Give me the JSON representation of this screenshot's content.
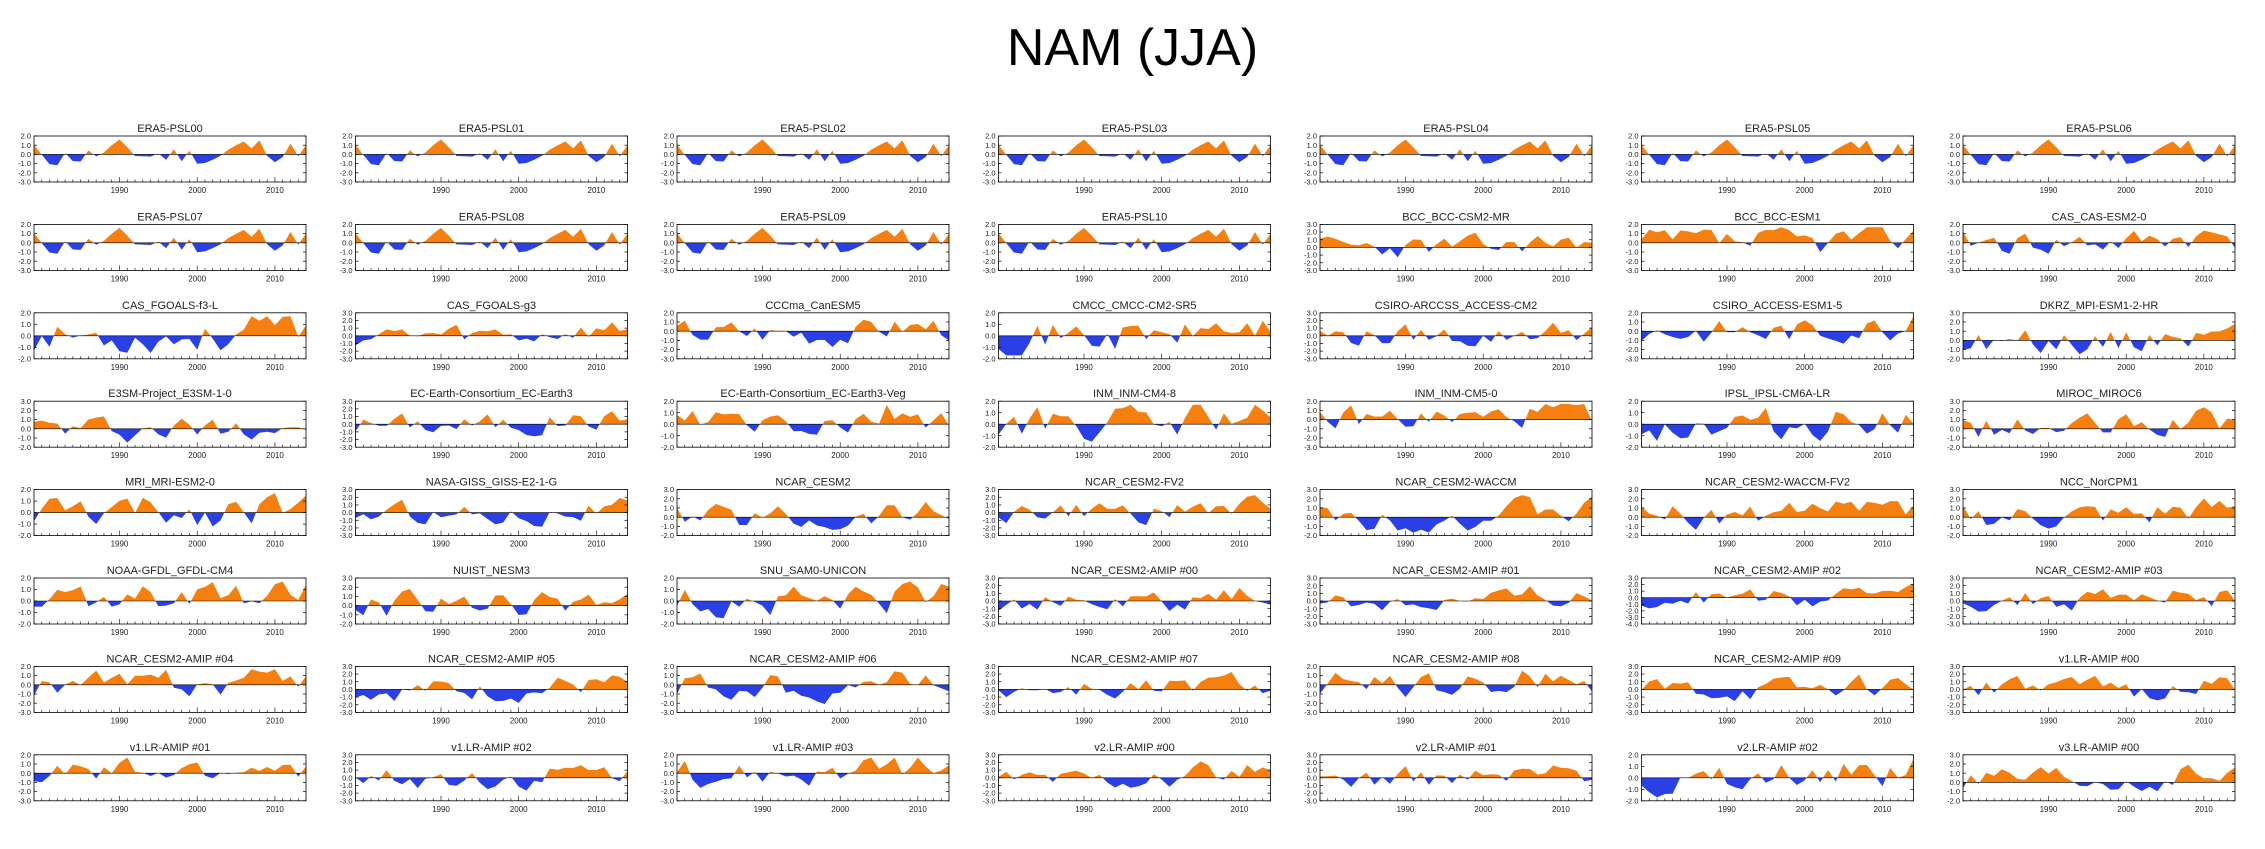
{
  "title": "NAM (JJA)",
  "colors": {
    "positive": "#f57f0f",
    "negative": "#2a3fe5",
    "axis": "#000000"
  },
  "chart_data": {
    "type": "area",
    "layout": "grid of small-multiple panels, 7 columns x 8 rows",
    "years": [
      1979,
      2014
    ],
    "x_ticks": [
      "1990",
      "2000",
      "2010"
    ],
    "panels": [
      {
        "title": "ERA5-PSL00",
        "ylim": [
          -3,
          2
        ],
        "y_ticks": [
          "2.0",
          "1.0",
          "0.0",
          "-1.0",
          "-2.0",
          "-3.0"
        ],
        "seed": 11
      },
      {
        "title": "ERA5-PSL01",
        "ylim": [
          -3,
          2
        ],
        "y_ticks": [
          "2.0",
          "1.0",
          "0.0",
          "-1.0",
          "-2.0",
          "-3.0"
        ],
        "seed": 11
      },
      {
        "title": "ERA5-PSL02",
        "ylim": [
          -3,
          2
        ],
        "y_ticks": [
          "2.0",
          "1.0",
          "0.0",
          "-1.0",
          "-2.0",
          "-3.0"
        ],
        "seed": 11
      },
      {
        "title": "ERA5-PSL03",
        "ylim": [
          -3,
          2
        ],
        "y_ticks": [
          "2.0",
          "1.0",
          "0.0",
          "-1.0",
          "-2.0",
          "-3.0"
        ],
        "seed": 11
      },
      {
        "title": "ERA5-PSL04",
        "ylim": [
          -3,
          2
        ],
        "y_ticks": [
          "2.0",
          "1.0",
          "0.0",
          "-1.0",
          "-2.0",
          "-3.0"
        ],
        "seed": 11
      },
      {
        "title": "ERA5-PSL05",
        "ylim": [
          -3,
          2
        ],
        "y_ticks": [
          "2.0",
          "1.0",
          "0.0",
          "-1.0",
          "-2.0",
          "-3.0"
        ],
        "seed": 11
      },
      {
        "title": "ERA5-PSL06",
        "ylim": [
          -3,
          2
        ],
        "y_ticks": [
          "2.0",
          "1.0",
          "0.0",
          "-1.0",
          "-2.0",
          "-3.0"
        ],
        "seed": 11
      },
      {
        "title": "ERA5-PSL07",
        "ylim": [
          -3,
          2
        ],
        "y_ticks": [
          "2.0",
          "1.0",
          "0.0",
          "-1.0",
          "-2.0",
          "-3.0"
        ],
        "seed": 11
      },
      {
        "title": "ERA5-PSL08",
        "ylim": [
          -3,
          2
        ],
        "y_ticks": [
          "2.0",
          "1.0",
          "0.0",
          "-1.0",
          "-2.0",
          "-3.0"
        ],
        "seed": 11
      },
      {
        "title": "ERA5-PSL09",
        "ylim": [
          -3,
          2
        ],
        "y_ticks": [
          "2.0",
          "1.0",
          "0.0",
          "-1.0",
          "-2.0",
          "-3.0"
        ],
        "seed": 11
      },
      {
        "title": "ERA5-PSL10",
        "ylim": [
          -3,
          2
        ],
        "y_ticks": [
          "2.0",
          "1.0",
          "0.0",
          "-1.0",
          "-2.0",
          "-3.0"
        ],
        "seed": 11
      },
      {
        "title": "BCC_BCC-CSM2-MR",
        "ylim": [
          -3,
          3
        ],
        "y_ticks": [
          "3.0",
          "2.0",
          "1.0",
          "0.0",
          "-1.0",
          "-2.0",
          "-3.0"
        ],
        "seed": 23
      },
      {
        "title": "BCC_BCC-ESM1",
        "ylim": [
          -3,
          2
        ],
        "y_ticks": [
          "2.0",
          "1.0",
          "0.0",
          "-1.0",
          "-2.0",
          "-3.0"
        ],
        "seed": 37
      },
      {
        "title": "CAS_CAS-ESM2-0",
        "ylim": [
          -3,
          2
        ],
        "y_ticks": [
          "2.0",
          "1.0",
          "0.0",
          "-1.0",
          "-2.0",
          "-3.0"
        ],
        "seed": 41
      },
      {
        "title": "CAS_FGOALS-f3-L",
        "ylim": [
          -2,
          2
        ],
        "y_ticks": [
          "2.0",
          "1.0",
          "0.0",
          "-1.0",
          "-2.0"
        ],
        "seed": 53
      },
      {
        "title": "CAS_FGOALS-g3",
        "ylim": [
          -3,
          3
        ],
        "y_ticks": [
          "3.0",
          "2.0",
          "1.0",
          "0.0",
          "-1.0",
          "-2.0",
          "-3.0"
        ],
        "seed": 59
      },
      {
        "title": "CCCma_CanESM5",
        "ylim": [
          -3,
          2
        ],
        "y_ticks": [
          "2.0",
          "1.0",
          "0.0",
          "-1.0",
          "-2.0",
          "-3.0"
        ],
        "seed": 67
      },
      {
        "title": "CMCC_CMCC-CM2-SR5",
        "ylim": [
          -2,
          2
        ],
        "y_ticks": [
          "2.0",
          "1.0",
          "0.0",
          "-1.0",
          "-2.0"
        ],
        "seed": 71
      },
      {
        "title": "CSIRO-ARCCSS_ACCESS-CM2",
        "ylim": [
          -3,
          3
        ],
        "y_ticks": [
          "3.0",
          "2.0",
          "1.0",
          "0.0",
          "-1.0",
          "-2.0",
          "-3.0"
        ],
        "seed": 79
      },
      {
        "title": "CSIRO_ACCESS-ESM1-5",
        "ylim": [
          -3,
          2
        ],
        "y_ticks": [
          "2.0",
          "1.0",
          "0.0",
          "-1.0",
          "-2.0",
          "-3.0"
        ],
        "seed": 83
      },
      {
        "title": "DKRZ_MPI-ESM1-2-HR",
        "ylim": [
          -2,
          3
        ],
        "y_ticks": [
          "3.0",
          "2.0",
          "1.0",
          "0.0",
          "-1.0",
          "-2.0"
        ],
        "seed": 89
      },
      {
        "title": "E3SM-Project_E3SM-1-0",
        "ylim": [
          -2,
          3
        ],
        "y_ticks": [
          "3.0",
          "2.0",
          "1.0",
          "0.0",
          "-1.0",
          "-2.0"
        ],
        "seed": 97
      },
      {
        "title": "EC-Earth-Consortium_EC-Earth3",
        "ylim": [
          -3,
          3
        ],
        "y_ticks": [
          "3.0",
          "2.0",
          "1.0",
          "0.0",
          "-1.0",
          "-2.0",
          "-3.0"
        ],
        "seed": 101
      },
      {
        "title": "EC-Earth-Consortium_EC-Earth3-Veg",
        "ylim": [
          -2,
          2
        ],
        "y_ticks": [
          "2.0",
          "1.0",
          "0.0",
          "-1.0",
          "-2.0"
        ],
        "seed": 103
      },
      {
        "title": "INM_INM-CM4-8",
        "ylim": [
          -2,
          2
        ],
        "y_ticks": [
          "2.0",
          "1.0",
          "0.0",
          "-1.0",
          "-2.0"
        ],
        "seed": 107
      },
      {
        "title": "INM_INM-CM5-0",
        "ylim": [
          -3,
          2
        ],
        "y_ticks": [
          "2.0",
          "1.0",
          "0.0",
          "-1.0",
          "-2.0",
          "-3.0"
        ],
        "seed": 109
      },
      {
        "title": "IPSL_IPSL-CM6A-LR",
        "ylim": [
          -2,
          2
        ],
        "y_ticks": [
          "2.0",
          "1.0",
          "0.0",
          "-1.0",
          "-2.0"
        ],
        "seed": 113
      },
      {
        "title": "MIROC_MIROC6",
        "ylim": [
          -2,
          3
        ],
        "y_ticks": [
          "3.0",
          "2.0",
          "1.0",
          "0.0",
          "-1.0",
          "-2.0"
        ],
        "seed": 127
      },
      {
        "title": "MRI_MRI-ESM2-0",
        "ylim": [
          -2,
          2
        ],
        "y_ticks": [
          "2.0",
          "1.0",
          "0.0",
          "-1.0",
          "-2.0"
        ],
        "seed": 131
      },
      {
        "title": "NASA-GISS_GISS-E2-1-G",
        "ylim": [
          -3,
          3
        ],
        "y_ticks": [
          "3.0",
          "2.0",
          "1.0",
          "0.0",
          "-1.0",
          "-2.0",
          "-3.0"
        ],
        "seed": 137
      },
      {
        "title": "NCAR_CESM2",
        "ylim": [
          -2,
          3
        ],
        "y_ticks": [
          "3.0",
          "2.0",
          "1.0",
          "0.0",
          "-1.0",
          "-2.0"
        ],
        "seed": 139
      },
      {
        "title": "NCAR_CESM2-FV2",
        "ylim": [
          -3,
          3
        ],
        "y_ticks": [
          "3.0",
          "2.0",
          "1.0",
          "0.0",
          "-1.0",
          "-2.0",
          "-3.0"
        ],
        "seed": 149
      },
      {
        "title": "NCAR_CESM2-WACCM",
        "ylim": [
          -2,
          3
        ],
        "y_ticks": [
          "3.0",
          "2.0",
          "1.0",
          "0.0",
          "-1.0",
          "-2.0"
        ],
        "seed": 151
      },
      {
        "title": "NCAR_CESM2-WACCM-FV2",
        "ylim": [
          -2,
          3
        ],
        "y_ticks": [
          "3.0",
          "2.0",
          "1.0",
          "0.0",
          "-1.0",
          "-2.0"
        ],
        "seed": 157
      },
      {
        "title": "NCC_NorCPM1",
        "ylim": [
          -2,
          3
        ],
        "y_ticks": [
          "3.0",
          "2.0",
          "1.0",
          "0.0",
          "-1.0",
          "-2.0"
        ],
        "seed": 163
      },
      {
        "title": "NOAA-GFDL_GFDL-CM4",
        "ylim": [
          -2,
          2
        ],
        "y_ticks": [
          "2.0",
          "1.0",
          "0.0",
          "-1.0",
          "-2.0"
        ],
        "seed": 167
      },
      {
        "title": "NUIST_NESM3",
        "ylim": [
          -2,
          3
        ],
        "y_ticks": [
          "3.0",
          "2.0",
          "1.0",
          "0.0",
          "-1.0",
          "-2.0"
        ],
        "seed": 173
      },
      {
        "title": "SNU_SAM0-UNICON",
        "ylim": [
          -2,
          2
        ],
        "y_ticks": [
          "2.0",
          "1.0",
          "0.0",
          "-1.0",
          "-2.0"
        ],
        "seed": 179
      },
      {
        "title": "NCAR_CESM2-AMIP  #00",
        "ylim": [
          -3,
          3
        ],
        "y_ticks": [
          "3.0",
          "2.0",
          "1.0",
          "0.0",
          "-1.0",
          "-2.0",
          "-3.0"
        ],
        "seed": 181
      },
      {
        "title": "NCAR_CESM2-AMIP  #01",
        "ylim": [
          -3,
          3
        ],
        "y_ticks": [
          "3.0",
          "2.0",
          "1.0",
          "0.0",
          "-1.0",
          "-2.0",
          "-3.0"
        ],
        "seed": 191
      },
      {
        "title": "NCAR_CESM2-AMIP  #02",
        "ylim": [
          -4,
          3
        ],
        "y_ticks": [
          "3.0",
          "2.0",
          "1.0",
          "0.0",
          "-1.0",
          "-2.0",
          "-3.0",
          "-4.0"
        ],
        "seed": 193
      },
      {
        "title": "NCAR_CESM2-AMIP  #03",
        "ylim": [
          -3,
          3
        ],
        "y_ticks": [
          "3.0",
          "2.0",
          "1.0",
          "0.0",
          "-1.0",
          "-2.0",
          "-3.0"
        ],
        "seed": 197
      },
      {
        "title": "NCAR_CESM2-AMIP  #04",
        "ylim": [
          -3,
          2
        ],
        "y_ticks": [
          "2.0",
          "1.0",
          "0.0",
          "-1.0",
          "-2.0",
          "-3.0"
        ],
        "seed": 199
      },
      {
        "title": "NCAR_CESM2-AMIP  #05",
        "ylim": [
          -3,
          3
        ],
        "y_ticks": [
          "3.0",
          "2.0",
          "1.0",
          "0.0",
          "-1.0",
          "-2.0",
          "-3.0"
        ],
        "seed": 211
      },
      {
        "title": "NCAR_CESM2-AMIP  #06",
        "ylim": [
          -3,
          2
        ],
        "y_ticks": [
          "2.0",
          "1.0",
          "0.0",
          "-1.0",
          "-2.0",
          "-3.0"
        ],
        "seed": 223
      },
      {
        "title": "NCAR_CESM2-AMIP  #07",
        "ylim": [
          -3,
          3
        ],
        "y_ticks": [
          "3.0",
          "2.0",
          "1.0",
          "0.0",
          "-1.0",
          "-2.0",
          "-3.0"
        ],
        "seed": 227
      },
      {
        "title": "NCAR_CESM2-AMIP  #08",
        "ylim": [
          -3,
          2
        ],
        "y_ticks": [
          "2.0",
          "1.0",
          "0.0",
          "-1.0",
          "-2.0",
          "-3.0"
        ],
        "seed": 229
      },
      {
        "title": "NCAR_CESM2-AMIP  #09",
        "ylim": [
          -3,
          3
        ],
        "y_ticks": [
          "3.0",
          "2.0",
          "1.0",
          "0.0",
          "-1.0",
          "-2.0",
          "-3.0"
        ],
        "seed": 233
      },
      {
        "title": "v1.LR-AMIP  #00",
        "ylim": [
          -3,
          3
        ],
        "y_ticks": [
          "3.0",
          "2.0",
          "1.0",
          "0.0",
          "-1.0",
          "-2.0",
          "-3.0"
        ],
        "seed": 239
      },
      {
        "title": "v1.LR-AMIP  #01",
        "ylim": [
          -3,
          2
        ],
        "y_ticks": [
          "2.0",
          "1.0",
          "0.0",
          "-1.0",
          "-2.0",
          "-3.0"
        ],
        "seed": 241
      },
      {
        "title": "v1.LR-AMIP  #02",
        "ylim": [
          -3,
          3
        ],
        "y_ticks": [
          "3.0",
          "2.0",
          "1.0",
          "0.0",
          "-1.0",
          "-2.0",
          "-3.0"
        ],
        "seed": 251
      },
      {
        "title": "v1.LR-AMIP  #03",
        "ylim": [
          -3,
          2
        ],
        "y_ticks": [
          "2.0",
          "1.0",
          "0.0",
          "-1.0",
          "-2.0",
          "-3.0"
        ],
        "seed": 257
      },
      {
        "title": "v2.LR-AMIP  #00",
        "ylim": [
          -3,
          3
        ],
        "y_ticks": [
          "3.0",
          "2.0",
          "1.0",
          "0.0",
          "-1.0",
          "-2.0",
          "-3.0"
        ],
        "seed": 263
      },
      {
        "title": "v2.LR-AMIP  #01",
        "ylim": [
          -3,
          3
        ],
        "y_ticks": [
          "3.0",
          "2.0",
          "1.0",
          "0.0",
          "-1.0",
          "-2.0",
          "-3.0"
        ],
        "seed": 269
      },
      {
        "title": "v2.LR-AMIP  #02",
        "ylim": [
          -2,
          2
        ],
        "y_ticks": [
          "2.0",
          "1.0",
          "0.0",
          "-1.0",
          "-2.0"
        ],
        "seed": 271
      },
      {
        "title": "v3.LR-AMIP  #00",
        "ylim": [
          -2,
          3
        ],
        "y_ticks": [
          "3.0",
          "2.0",
          "1.0",
          "0.0",
          "-1.0",
          "-2.0"
        ],
        "seed": 277
      }
    ]
  }
}
